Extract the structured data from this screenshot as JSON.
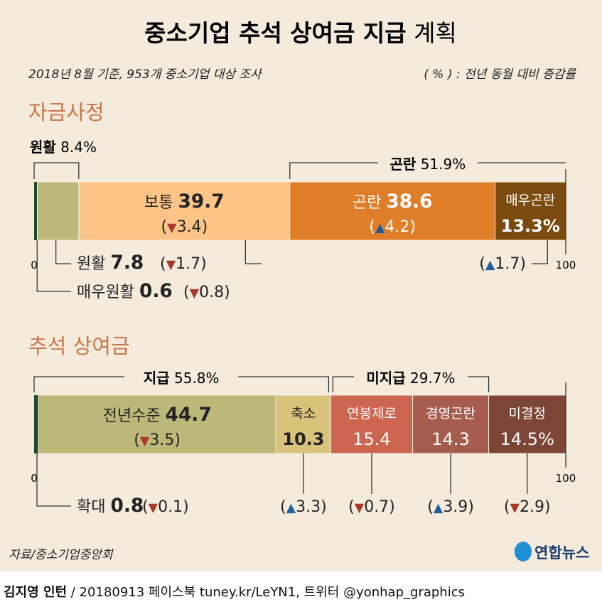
{
  "title": {
    "bold": "중소기업 추석 상여금 지급",
    "normal": "계획"
  },
  "subtitle": "2018년 8월 기준, 953개 중소기업 대상 조사",
  "note": "( % ) : 전년 동월 대비 증감률",
  "source": "자료/중소기업중앙회",
  "logo": "연합뉴스",
  "footer": {
    "author": "김지영 인턴",
    "rest": " / 20180913  페이스북 tuney.kr/LeYN1, 트위터 @yonhap_graphics"
  },
  "colors": {
    "up": "#1d5f9c",
    "down": "#a8392c",
    "section": "#c9784a",
    "background": "#f5ebdc"
  },
  "chart_data": [
    {
      "type": "bar",
      "stacked": true,
      "title": "자금사정",
      "axis": {
        "min_label": "0",
        "max_label": "100"
      },
      "groups": [
        {
          "label": "원활",
          "value_label": "8.4%"
        },
        {
          "label": "곤란",
          "value_label": "51.9%"
        }
      ],
      "segments": [
        {
          "name": "매우원활",
          "value": 0.6,
          "value_label": "0.6",
          "delta": {
            "dir": "down",
            "value": "0.8"
          },
          "color": "#1f4a2a"
        },
        {
          "name": "원활",
          "value": 7.8,
          "value_label": "7.8",
          "delta": {
            "dir": "down",
            "value": "1.7"
          },
          "color": "#bcb878"
        },
        {
          "name": "보통",
          "value": 39.7,
          "value_label": "39.7",
          "delta": {
            "dir": "down",
            "value": "3.4"
          },
          "color": "#fcc486"
        },
        {
          "name": "곤란",
          "value": 38.6,
          "value_label": "38.6",
          "delta": {
            "dir": "up",
            "value": "4.2"
          },
          "color": "#e07d28"
        },
        {
          "name": "매우곤란",
          "value": 13.3,
          "value_label": "13.3%",
          "delta": {
            "dir": "up",
            "value": "1.7"
          },
          "color": "#7a4a0e"
        }
      ]
    },
    {
      "type": "bar",
      "stacked": true,
      "title": "추석 상여금",
      "axis": {
        "min_label": "0",
        "max_label": "100"
      },
      "groups": [
        {
          "label": "지급",
          "value_label": "55.8%"
        },
        {
          "label": "미지급",
          "value_label": "29.7%"
        }
      ],
      "segments": [
        {
          "name": "확대",
          "value": 0.8,
          "value_label": "0.8",
          "delta": {
            "dir": "down",
            "value": "0.1"
          },
          "color": "#1f4a2a"
        },
        {
          "name": "전년수준",
          "value": 44.7,
          "value_label": "44.7",
          "delta": {
            "dir": "down",
            "value": "3.5"
          },
          "color": "#bcb878"
        },
        {
          "name": "축소",
          "value": 10.3,
          "value_label": "10.3",
          "delta": {
            "dir": "up",
            "value": "3.3"
          },
          "color": "#d9c27a"
        },
        {
          "name": "연봉제로",
          "value": 15.4,
          "value_label": "15.4",
          "delta": {
            "dir": "down",
            "value": "0.7"
          },
          "color": "#cd6650"
        },
        {
          "name": "경영곤란",
          "value": 14.3,
          "value_label": "14.3",
          "delta": {
            "dir": "up",
            "value": "3.9"
          },
          "color": "#a65c4e"
        },
        {
          "name": "미결정",
          "value": 14.5,
          "value_label": "14.5%",
          "delta": {
            "dir": "down",
            "value": "2.9"
          },
          "color": "#7d4536"
        }
      ]
    }
  ]
}
